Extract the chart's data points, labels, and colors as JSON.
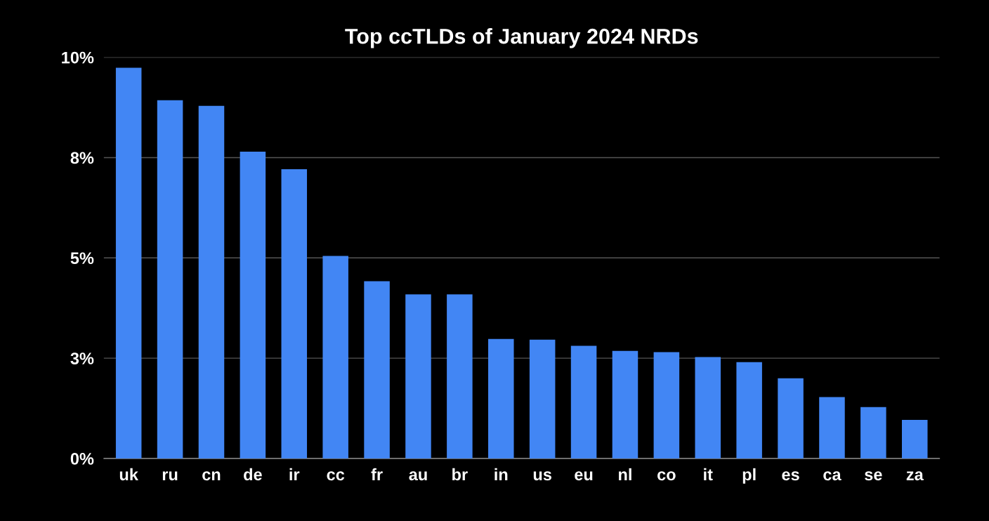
{
  "chart_data": {
    "type": "bar",
    "title": "Top ccTLDs of January 2024 NRDs",
    "categories": [
      "uk",
      "ru",
      "cn",
      "de",
      "ir",
      "cc",
      "fr",
      "au",
      "br",
      "in",
      "us",
      "eu",
      "nl",
      "co",
      "it",
      "pl",
      "es",
      "ca",
      "se",
      "za"
    ],
    "values": [
      9.74,
      8.93,
      8.79,
      7.65,
      7.21,
      5.05,
      4.42,
      4.09,
      4.09,
      2.98,
      2.96,
      2.81,
      2.68,
      2.65,
      2.53,
      2.4,
      2.0,
      1.53,
      1.28,
      0.96
    ],
    "color": "#4286f4",
    "ylim": [
      0,
      10
    ],
    "yticks": [
      {
        "value": 0,
        "label": "0%"
      },
      {
        "value": 2.5,
        "label": "3%"
      },
      {
        "value": 5,
        "label": "5%"
      },
      {
        "value": 7.5,
        "label": "8%"
      },
      {
        "value": 10,
        "label": "10%"
      }
    ],
    "grid": "y"
  }
}
